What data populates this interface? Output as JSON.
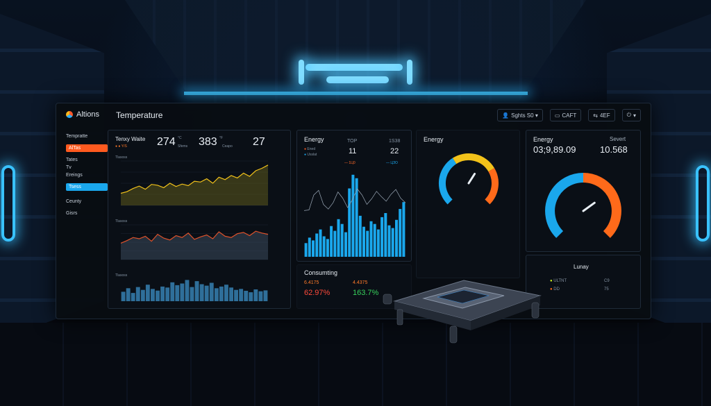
{
  "app": {
    "logo": "Altions",
    "page_title": "Temperature"
  },
  "topbar": [
    {
      "icon": "user-icon",
      "label": "Sghts S0 ▾"
    },
    {
      "icon": "camera-icon",
      "label": "CAFT"
    },
    {
      "icon": "share-icon",
      "label": "4EF"
    },
    {
      "icon": "power-icon",
      "label": "▾"
    }
  ],
  "sidebar": [
    {
      "label": "Tempratte",
      "style": "plain"
    },
    {
      "label": "AlTas",
      "style": "orange"
    },
    {
      "label": "Tates",
      "style": "plain"
    },
    {
      "label": "Tv",
      "style": "plain"
    },
    {
      "label": "Ereings",
      "style": "plain"
    },
    {
      "label": "Tsess",
      "style": "blue"
    },
    {
      "label": "Ceunty",
      "style": "plain"
    },
    {
      "label": "Gisrs",
      "style": "plain"
    }
  ],
  "temp_card": {
    "title": "Tenxy Waite",
    "legend": "● ● Y/S",
    "stat1": "274",
    "stat1_unit": "°C",
    "stat1_sub": "Sfems",
    "stat2": "383",
    "stat2_unit": "°F",
    "stat2_sub": "Ceapo",
    "stat3": "27",
    "chart1_label": "Tlasoss",
    "chart2_label": "Tlasoss",
    "chart3_label": "Tlasoss"
  },
  "energy_card": {
    "title": "Energy",
    "legend1": "Ened",
    "legend2": "Usslat",
    "col1_head": "TOP",
    "col1_val": "11",
    "col1_sub": "— 1Ц0",
    "col2_head": "1S38",
    "col2_val": "22",
    "col2_sub": "— ЦЗО"
  },
  "consuming": {
    "title": "Consumting",
    "l1": "6.4175",
    "l2": "4.4375",
    "v1": "62.97%",
    "v2": "163.7%"
  },
  "gauge1": {
    "title": "Energy",
    "value_pct": 0.62
  },
  "gauge2": {
    "title": "Energy",
    "subtitle": "Severt",
    "val1": "03;9,89.09",
    "val2": "10.568",
    "value_pct": 0.7
  },
  "legend_box": {
    "title": "Lunay",
    "items": [
      {
        "label": "ULTNT",
        "value": "C9",
        "color": "#c8f01e"
      },
      {
        "label": "DD",
        "value": "75",
        "color": "#ff6a1a"
      }
    ]
  },
  "colors": {
    "orange": "#ff5a1f",
    "blue": "#1aa7ec",
    "yellow": "#f2c21a",
    "olive": "#8a8a2a",
    "green": "#37d25c"
  },
  "chart_data": [
    {
      "type": "area",
      "name": "chart1",
      "values": [
        30,
        34,
        42,
        48,
        40,
        52,
        50,
        44,
        55,
        47,
        53,
        49,
        60,
        58,
        66,
        55,
        70,
        64,
        74,
        68,
        80,
        72,
        86,
        92,
        100
      ],
      "ylim": [
        0,
        110
      ]
    },
    {
      "type": "area",
      "name": "chart2",
      "values": [
        52,
        60,
        70,
        66,
        74,
        58,
        80,
        68,
        62,
        76,
        70,
        84,
        64,
        72,
        78,
        66,
        88,
        74,
        70,
        82,
        86,
        76,
        90,
        84,
        80
      ],
      "ylim": [
        0,
        110
      ]
    },
    {
      "type": "bar",
      "name": "chart3",
      "values": [
        40,
        55,
        35,
        60,
        48,
        70,
        52,
        45,
        62,
        58,
        80,
        68,
        75,
        90,
        60,
        85,
        72,
        66,
        78,
        55,
        62,
        70,
        58,
        48,
        52,
        44,
        38,
        50,
        42,
        46
      ],
      "ylim": [
        0,
        100
      ]
    },
    {
      "type": "bar",
      "name": "energy_bars",
      "values": [
        20,
        28,
        24,
        34,
        40,
        30,
        26,
        45,
        38,
        55,
        48,
        36,
        100,
        120,
        115,
        60,
        44,
        38,
        52,
        48,
        40,
        58,
        64,
        46,
        42,
        54,
        70,
        80
      ],
      "ylim": [
        0,
        130
      ]
    },
    {
      "type": "line",
      "name": "energy_line",
      "values": [
        20,
        22,
        70,
        85,
        40,
        25,
        45,
        80,
        60,
        30,
        55,
        90,
        70,
        40,
        58,
        82,
        65,
        50,
        72,
        88,
        60,
        45
      ],
      "ylim": [
        0,
        100
      ]
    }
  ]
}
